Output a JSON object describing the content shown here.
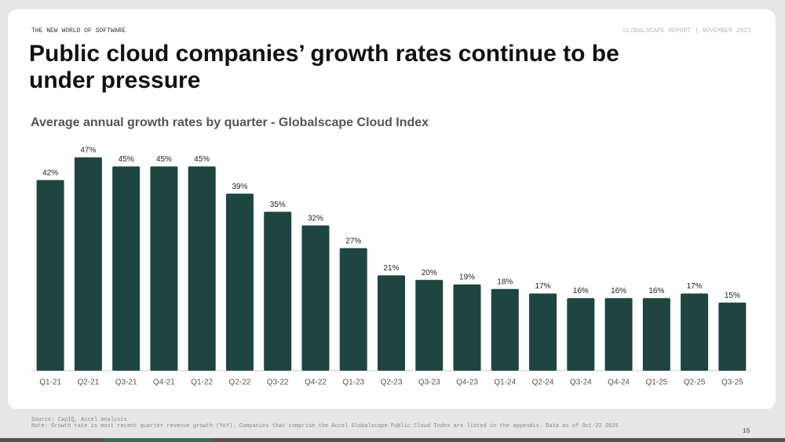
{
  "header": {
    "section": "THE NEW WORLD OF SOFTWARE",
    "report": "GLOBALSCAPE REPORT | NOVEMBER 2025"
  },
  "chart_data": {
    "type": "bar",
    "title": "Public cloud companies’ growth rates continue to be under pressure",
    "subtitle": "Average annual growth rates by quarter - Globalscape Cloud Index",
    "categories": [
      "Q1-21",
      "Q2-21",
      "Q3-21",
      "Q4-21",
      "Q1-22",
      "Q2-22",
      "Q3-22",
      "Q4-22",
      "Q1-23",
      "Q2-23",
      "Q3-23",
      "Q4-23",
      "Q1-24",
      "Q2-24",
      "Q3-24",
      "Q4-24",
      "Q1-25",
      "Q2-25",
      "Q3-25"
    ],
    "values": [
      42,
      47,
      45,
      45,
      45,
      39,
      35,
      32,
      27,
      21,
      20,
      19,
      18,
      17,
      16,
      16,
      16,
      17,
      15
    ],
    "value_labels": [
      "42%",
      "47%",
      "45%",
      "45%",
      "45%",
      "39%",
      "35%",
      "32%",
      "27%",
      "21%",
      "20%",
      "19%",
      "18%",
      "17%",
      "16%",
      "16%",
      "16%",
      "17%",
      "15%"
    ],
    "color": "#1f4540",
    "ylim": [
      0,
      48
    ]
  },
  "footer": {
    "source": "Source: CapIQ, Accel analysis",
    "note": "Note: Growth rate is most recent quarter revenue growth (YoY). Companies that comprise the Accel Globalscape Public Cloud Index are listed in the appendix. Data as of Oct-22 2025",
    "page": "15"
  }
}
